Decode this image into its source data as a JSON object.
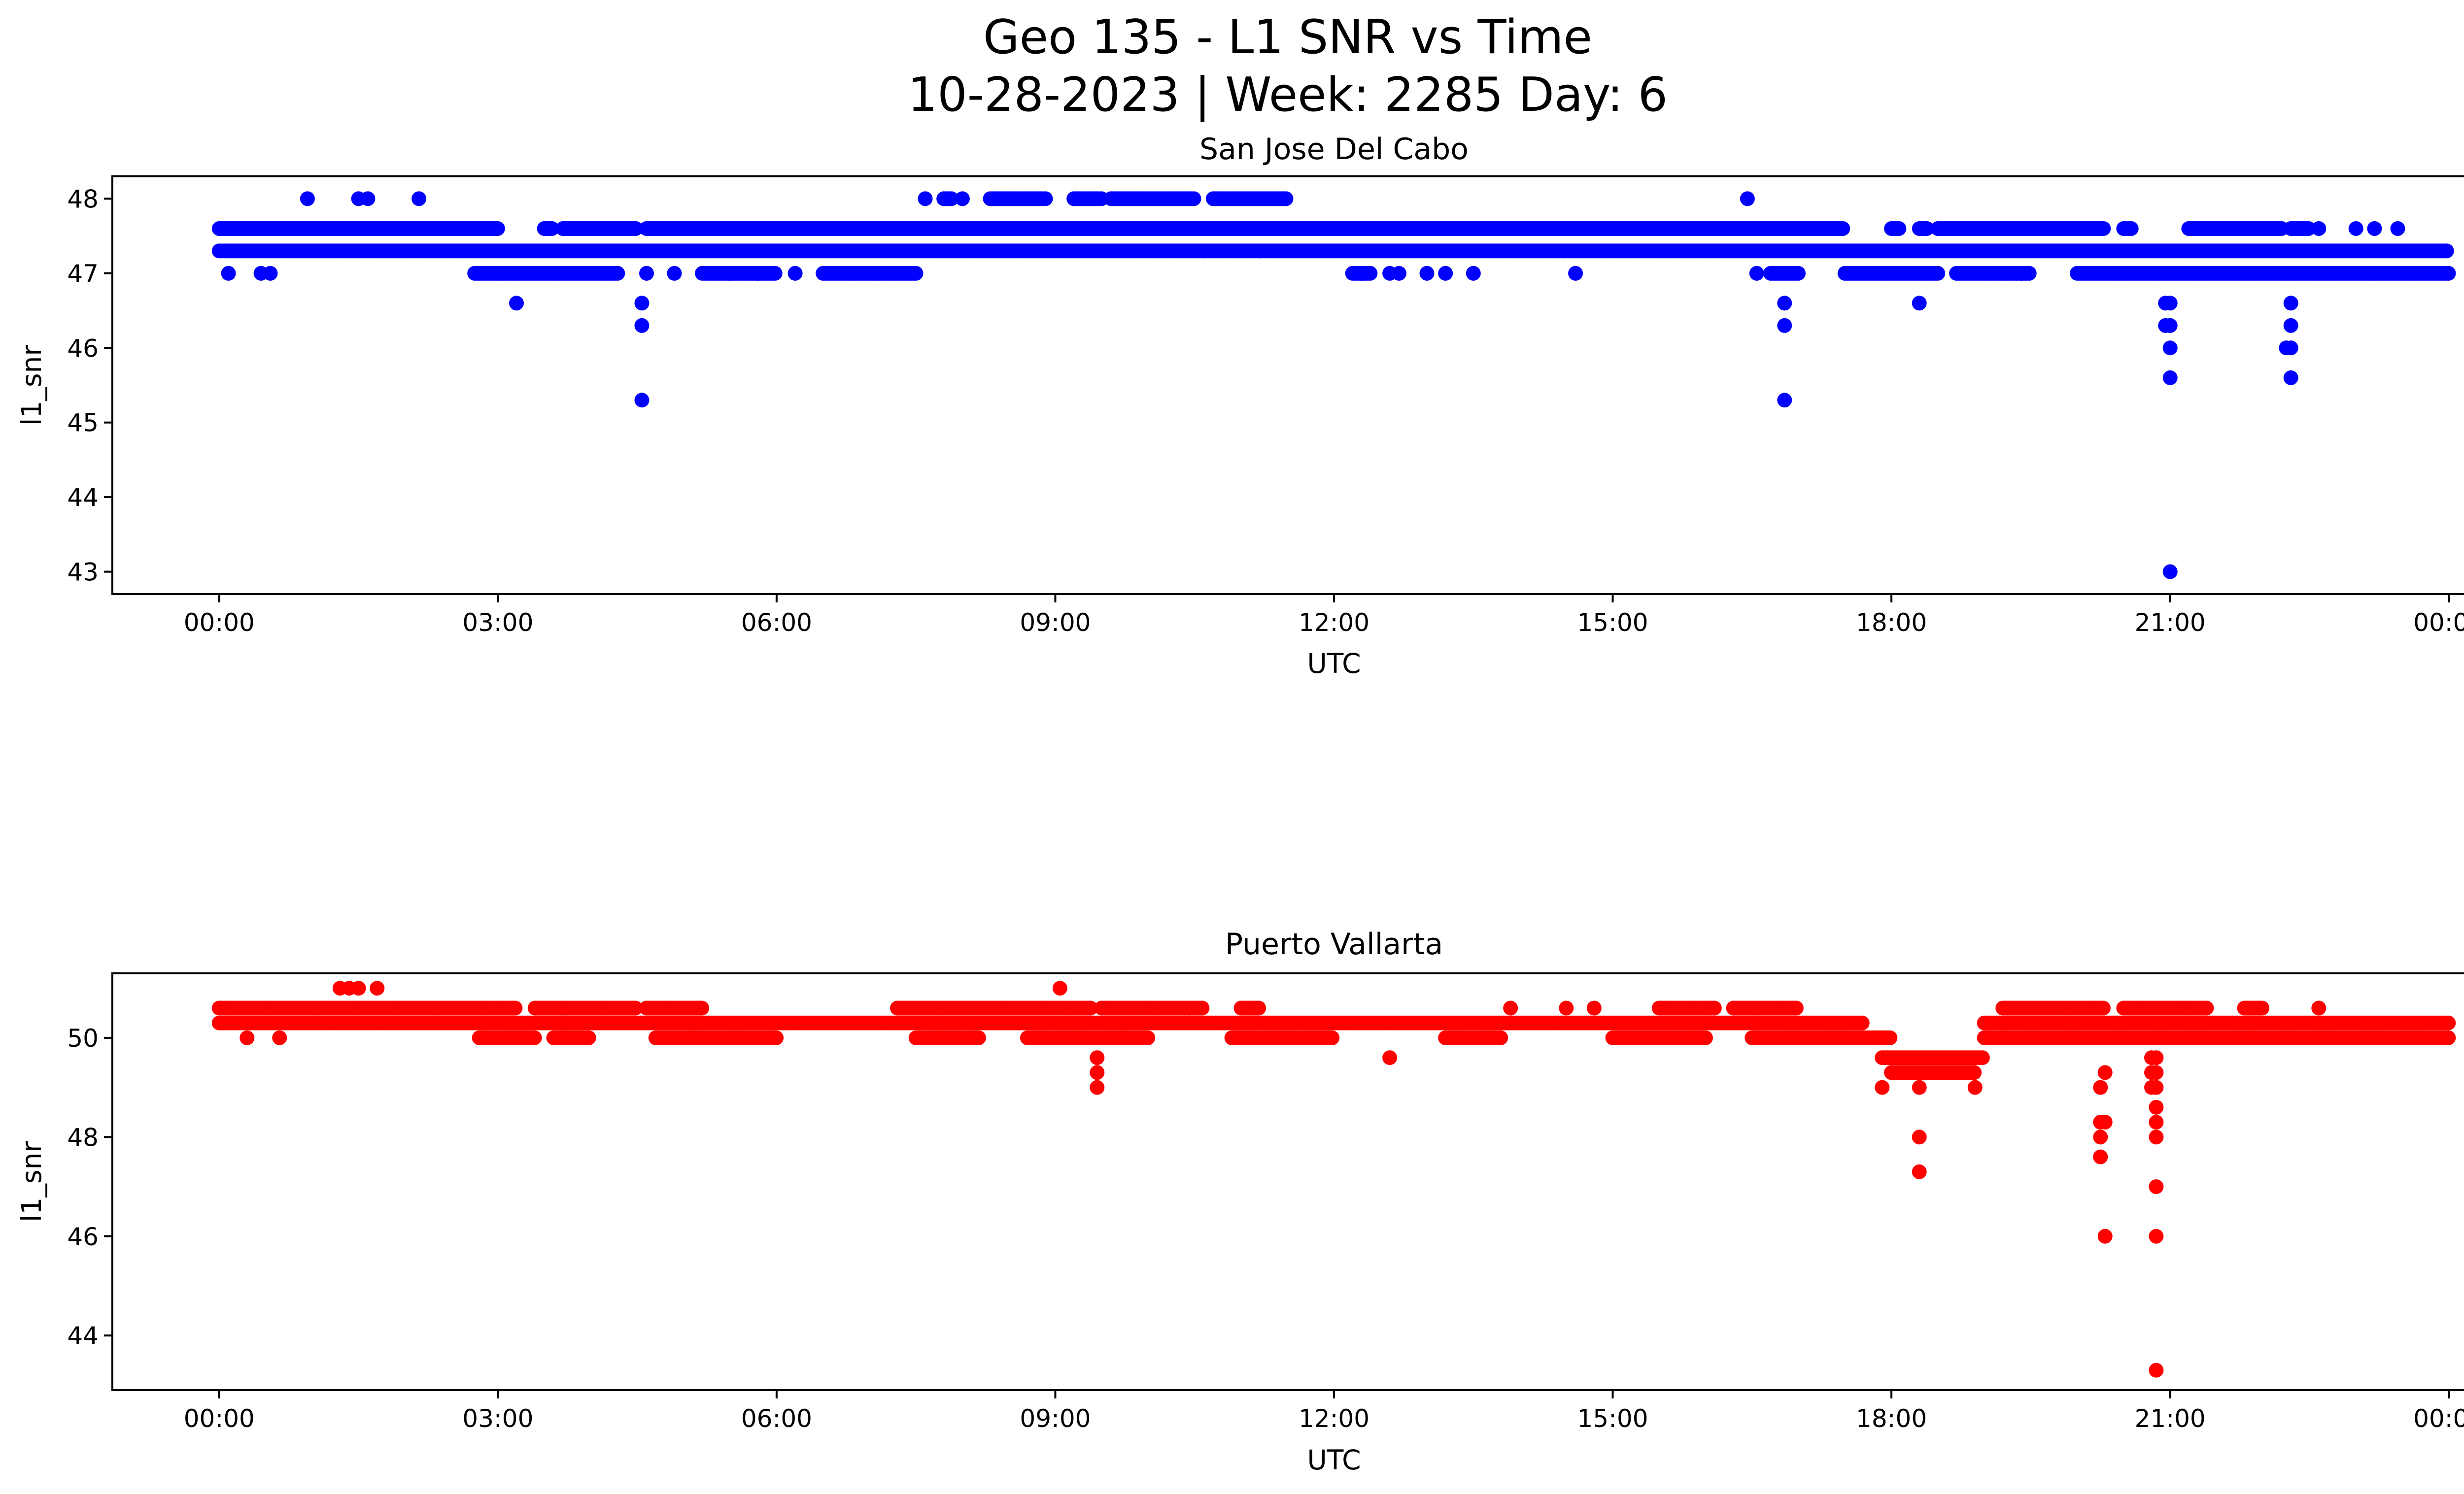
{
  "figure": {
    "title_line1": "Geo 135 - L1 SNR vs Time",
    "title_line2": "10-28-2023 | Week: 2285 Day: 6"
  },
  "chart_data": [
    {
      "type": "scatter",
      "title": "San Jose Del Cabo",
      "xlabel": "UTC",
      "ylabel": "l1_snr",
      "color": "#0000ff",
      "x_unit": "hours UTC",
      "xlim": [
        -1.15,
        25.15
      ],
      "ylim": [
        42.7,
        48.3
      ],
      "xticks": [
        {
          "value": 0,
          "label": "00:00"
        },
        {
          "value": 3,
          "label": "03:00"
        },
        {
          "value": 6,
          "label": "06:00"
        },
        {
          "value": 9,
          "label": "09:00"
        },
        {
          "value": 12,
          "label": "12:00"
        },
        {
          "value": 15,
          "label": "15:00"
        },
        {
          "value": 18,
          "label": "18:00"
        },
        {
          "value": 21,
          "label": "21:00"
        },
        {
          "value": 24,
          "label": "00:00"
        }
      ],
      "yticks": [
        {
          "value": 43,
          "label": "43"
        },
        {
          "value": 44,
          "label": "44"
        },
        {
          "value": 45,
          "label": "45"
        },
        {
          "value": 46,
          "label": "46"
        },
        {
          "value": 47,
          "label": "47"
        },
        {
          "value": 48,
          "label": "48"
        }
      ],
      "bands": [
        {
          "y": 47.3,
          "ranges": [
            [
              0,
              24
            ]
          ]
        },
        {
          "y": 47.6,
          "ranges": [
            [
              0,
              3.0
            ],
            [
              3.5,
              3.6
            ],
            [
              3.7,
              4.5
            ],
            [
              4.6,
              7.0
            ],
            [
              7.0,
              17.5
            ],
            [
              18.0,
              18.1
            ],
            [
              18.3,
              18.4
            ],
            [
              18.5,
              20.3
            ],
            [
              20.5,
              20.6
            ],
            [
              21.2,
              22.2
            ],
            [
              22.3,
              22.5
            ]
          ]
        },
        {
          "y": 47.0,
          "ranges": [
            [
              2.75,
              4.3
            ],
            [
              5.2,
              6.0
            ],
            [
              6.5,
              7.5
            ],
            [
              12.2,
              12.4
            ],
            [
              16.7,
              17.0
            ],
            [
              17.5,
              18.5
            ],
            [
              18.7,
              19.5
            ],
            [
              20.0,
              24.0
            ]
          ]
        },
        {
          "y": 48.0,
          "ranges": [
            [
              7.8,
              7.9
            ],
            [
              8.3,
              8.9
            ],
            [
              9.2,
              9.5
            ],
            [
              9.6,
              10.5
            ],
            [
              10.7,
              11.5
            ]
          ]
        }
      ],
      "points": [
        [
          0.1,
          47.0
        ],
        [
          0.45,
          47.0
        ],
        [
          0.55,
          47.0
        ],
        [
          0.95,
          48.0
        ],
        [
          1.5,
          48.0
        ],
        [
          1.6,
          48.0
        ],
        [
          2.15,
          48.0
        ],
        [
          3.2,
          46.6
        ],
        [
          4.6,
          47.0
        ],
        [
          4.55,
          46.6
        ],
        [
          4.55,
          46.3
        ],
        [
          4.55,
          45.3
        ],
        [
          4.9,
          47.0
        ],
        [
          5.5,
          47.0
        ],
        [
          5.8,
          47.0
        ],
        [
          6.2,
          47.0
        ],
        [
          7.6,
          48.0
        ],
        [
          8.0,
          48.0
        ],
        [
          10.6,
          47.3
        ],
        [
          11.2,
          47.3
        ],
        [
          12.3,
          47.0
        ],
        [
          12.6,
          47.0
        ],
        [
          12.7,
          47.0
        ],
        [
          13.0,
          47.0
        ],
        [
          13.2,
          47.0
        ],
        [
          13.5,
          47.0
        ],
        [
          14.6,
          47.0
        ],
        [
          16.45,
          48.0
        ],
        [
          16.55,
          47.0
        ],
        [
          16.85,
          46.6
        ],
        [
          16.85,
          46.3
        ],
        [
          16.85,
          45.3
        ],
        [
          18.3,
          46.6
        ],
        [
          19.4,
          47.0
        ],
        [
          20.95,
          46.6
        ],
        [
          21.0,
          46.6
        ],
        [
          20.95,
          46.3
        ],
        [
          21.0,
          46.3
        ],
        [
          21.0,
          46.0
        ],
        [
          21.0,
          45.6
        ],
        [
          21.0,
          43.0
        ],
        [
          22.3,
          46.6
        ],
        [
          22.3,
          46.3
        ],
        [
          22.25,
          46.0
        ],
        [
          22.3,
          46.0
        ],
        [
          22.3,
          45.6
        ],
        [
          22.6,
          47.6
        ],
        [
          23.0,
          47.6
        ],
        [
          23.2,
          47.6
        ],
        [
          23.45,
          47.6
        ]
      ]
    },
    {
      "type": "scatter",
      "title": "Puerto Vallarta",
      "xlabel": "UTC",
      "ylabel": "l1_snr",
      "color": "#ff0000",
      "x_unit": "hours UTC",
      "xlim": [
        -1.15,
        25.15
      ],
      "ylim": [
        42.9,
        51.3
      ],
      "xticks": [
        {
          "value": 0,
          "label": "00:00"
        },
        {
          "value": 3,
          "label": "03:00"
        },
        {
          "value": 6,
          "label": "06:00"
        },
        {
          "value": 9,
          "label": "09:00"
        },
        {
          "value": 12,
          "label": "12:00"
        },
        {
          "value": 15,
          "label": "15:00"
        },
        {
          "value": 18,
          "label": "18:00"
        },
        {
          "value": 21,
          "label": "21:00"
        },
        {
          "value": 24,
          "label": "00:00"
        }
      ],
      "yticks": [
        {
          "value": 44,
          "label": "44"
        },
        {
          "value": 46,
          "label": "46"
        },
        {
          "value": 48,
          "label": "48"
        },
        {
          "value": 50,
          "label": "50"
        }
      ],
      "bands": [
        {
          "y": 50.3,
          "ranges": [
            [
              0,
              17.7
            ],
            [
              19.0,
              24.0
            ]
          ]
        },
        {
          "y": 50.6,
          "ranges": [
            [
              0,
              3.2
            ],
            [
              3.4,
              4.5
            ],
            [
              4.6,
              5.2
            ],
            [
              7.3,
              9.4
            ],
            [
              9.5,
              10.6
            ],
            [
              11.0,
              11.2
            ],
            [
              15.5,
              16.1
            ],
            [
              16.3,
              17.0
            ],
            [
              19.2,
              20.3
            ],
            [
              20.5,
              21.4
            ],
            [
              21.8,
              22.0
            ]
          ]
        },
        {
          "y": 50.0,
          "ranges": [
            [
              2.8,
              3.4
            ],
            [
              3.6,
              4.0
            ],
            [
              4.7,
              6.0
            ],
            [
              7.5,
              8.2
            ],
            [
              8.7,
              10.0
            ],
            [
              10.9,
              12.0
            ],
            [
              13.2,
              13.8
            ],
            [
              15.0,
              16.0
            ],
            [
              16.5,
              18.0
            ],
            [
              19.0,
              24.0
            ]
          ]
        },
        {
          "y": 49.6,
          "ranges": [
            [
              17.9,
              19.0
            ]
          ]
        },
        {
          "y": 49.3,
          "ranges": [
            [
              18.0,
              18.9
            ]
          ]
        }
      ],
      "points": [
        [
          0.3,
          50.0
        ],
        [
          0.65,
          50.0
        ],
        [
          1.3,
          51.0
        ],
        [
          1.4,
          51.0
        ],
        [
          1.5,
          51.0
        ],
        [
          1.7,
          51.0
        ],
        [
          9.05,
          51.0
        ],
        [
          9.45,
          49.6
        ],
        [
          9.45,
          49.3
        ],
        [
          9.45,
          49.0
        ],
        [
          12.6,
          49.6
        ],
        [
          13.9,
          50.6
        ],
        [
          14.5,
          50.6
        ],
        [
          14.8,
          50.6
        ],
        [
          17.9,
          49.0
        ],
        [
          18.3,
          49.0
        ],
        [
          18.3,
          48.0
        ],
        [
          18.3,
          47.3
        ],
        [
          18.9,
          49.0
        ],
        [
          19.2,
          50.0
        ],
        [
          20.25,
          49.0
        ],
        [
          20.3,
          49.3
        ],
        [
          20.25,
          48.3
        ],
        [
          20.3,
          48.3
        ],
        [
          20.25,
          48.0
        ],
        [
          20.25,
          47.6
        ],
        [
          20.3,
          46.0
        ],
        [
          20.8,
          49.6
        ],
        [
          20.85,
          49.6
        ],
        [
          20.8,
          49.3
        ],
        [
          20.85,
          49.3
        ],
        [
          20.8,
          49.0
        ],
        [
          20.85,
          49.0
        ],
        [
          20.85,
          48.6
        ],
        [
          20.85,
          48.3
        ],
        [
          20.85,
          48.0
        ],
        [
          20.85,
          47.0
        ],
        [
          20.85,
          46.0
        ],
        [
          20.85,
          43.3
        ],
        [
          22.6,
          50.6
        ]
      ]
    }
  ]
}
